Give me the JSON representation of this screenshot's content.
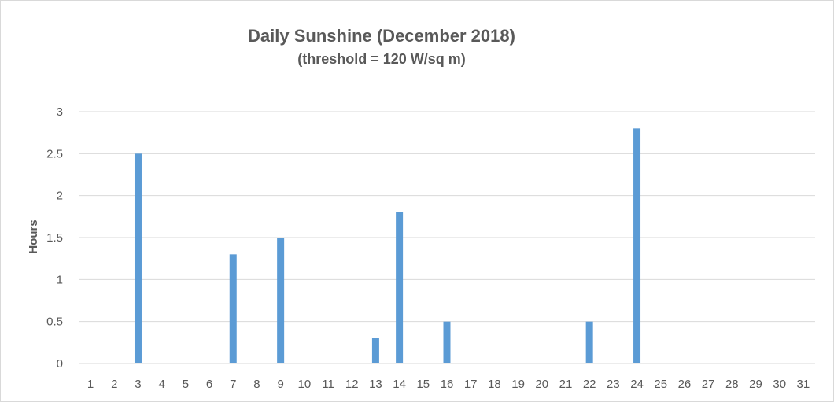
{
  "chart_data": {
    "type": "bar",
    "title": "Daily Sunshine (December 2018)",
    "subtitle": "(threshold = 120 W/sq m)",
    "xlabel": "",
    "ylabel": "Hours",
    "ylim": [
      0,
      3
    ],
    "yticks": [
      "0",
      "0.5",
      "1",
      "1.5",
      "2",
      "2.5",
      "3"
    ],
    "categories": [
      "1",
      "2",
      "3",
      "4",
      "5",
      "6",
      "7",
      "8",
      "9",
      "10",
      "11",
      "12",
      "13",
      "14",
      "15",
      "16",
      "17",
      "18",
      "19",
      "20",
      "21",
      "22",
      "23",
      "24",
      "25",
      "26",
      "27",
      "28",
      "29",
      "30",
      "31"
    ],
    "values": [
      0,
      0,
      2.5,
      0,
      0,
      0,
      1.3,
      0,
      1.5,
      0,
      0,
      0,
      0.3,
      1.8,
      0,
      0.5,
      0,
      0,
      0,
      0,
      0,
      0.5,
      0,
      2.8,
      0,
      0,
      0,
      0,
      0,
      0,
      0
    ],
    "grid": true,
    "legend": "none",
    "colors": {
      "bar": "#5b9bd5",
      "grid": "#d9d9d9",
      "text": "#595959"
    }
  }
}
